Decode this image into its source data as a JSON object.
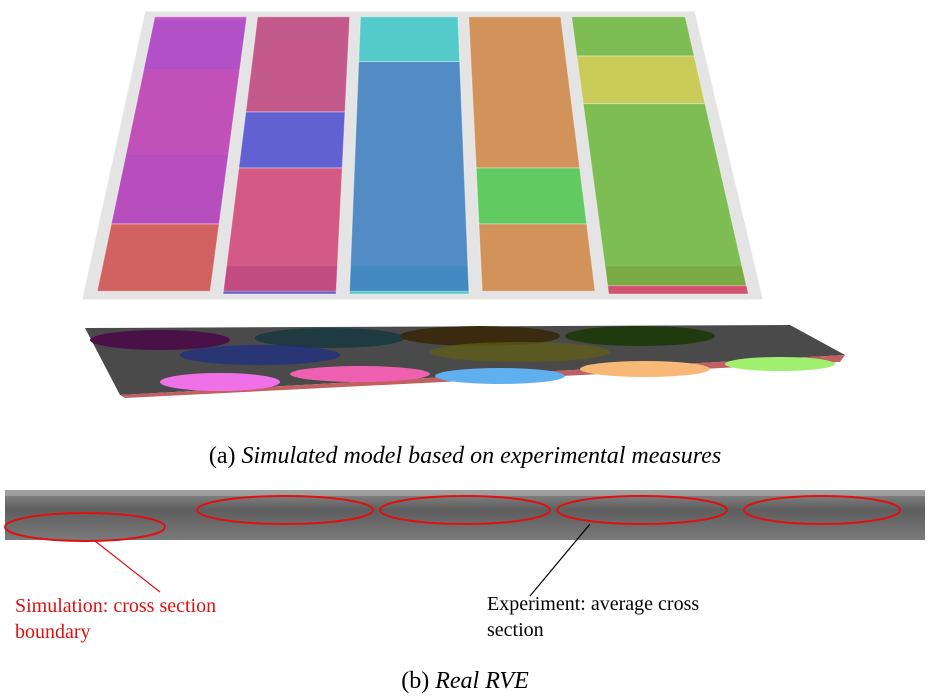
{
  "figure": {
    "panel_a": {
      "caption": {
        "label": "(a)",
        "text": "Simulated model based on experimental measures"
      }
    },
    "panel_b": {
      "annotations": [
        {
          "lines": [
            "Simulation: cross section",
            "boundary"
          ]
        },
        {
          "lines": [
            "Experiment: average cross",
            "section"
          ]
        }
      ],
      "caption": {
        "label": "(b)",
        "text": "Real RVE"
      }
    }
  }
}
